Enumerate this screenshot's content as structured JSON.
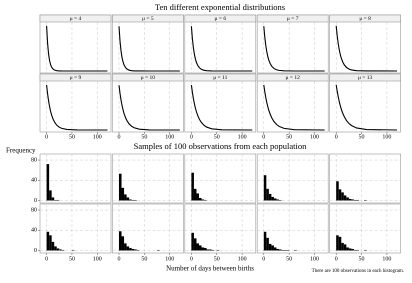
{
  "chart_data": [
    {
      "type": "line",
      "title": "Ten different exponential distributions",
      "color": "#000000",
      "x": [
        0,
        2,
        4,
        6,
        8,
        10,
        13,
        16,
        20,
        25,
        30,
        40,
        60,
        120
      ],
      "xlim": [
        -13,
        127
      ],
      "xticks": [
        0,
        50,
        100
      ],
      "grid": true,
      "panels": [
        {
          "label": "μ = 4",
          "ylim": [
            0,
            0.26
          ],
          "values": [
            0.25,
            0.152,
            0.092,
            0.056,
            0.034,
            0.021,
            0.0097,
            0.0046,
            0.0017,
            0.0005,
            0.0001,
            0,
            0,
            0
          ]
        },
        {
          "label": "μ = 5",
          "ylim": [
            0,
            0.21
          ],
          "values": [
            0.2,
            0.134,
            0.0899,
            0.0602,
            0.0404,
            0.0271,
            0.0149,
            0.0082,
            0.0037,
            0.0013,
            0.0005,
            0.0001,
            0,
            0
          ]
        },
        {
          "label": "μ = 6",
          "ylim": [
            0,
            0.175
          ],
          "values": [
            0.1667,
            0.1194,
            0.0856,
            0.0613,
            0.0439,
            0.0315,
            0.0191,
            0.0116,
            0.0059,
            0.0026,
            0.0011,
            0.0002,
            0,
            0
          ]
        },
        {
          "label": "μ = 7",
          "ylim": [
            0,
            0.15
          ],
          "values": [
            0.1429,
            0.1074,
            0.0807,
            0.0606,
            0.0456,
            0.0342,
            0.0223,
            0.0145,
            0.0082,
            0.004,
            0.002,
            0.0005,
            0,
            0
          ]
        },
        {
          "label": "μ = 8",
          "ylim": [
            0,
            0.13
          ],
          "values": [
            0.125,
            0.0974,
            0.0758,
            0.059,
            0.046,
            0.0358,
            0.0246,
            0.0169,
            0.0103,
            0.0055,
            0.0029,
            0.0008,
            0.0001,
            0
          ]
        },
        {
          "label": "μ = 9",
          "ylim": [
            0,
            0.116
          ],
          "values": [
            0.1111,
            0.089,
            0.0712,
            0.057,
            0.0457,
            0.0366,
            0.0262,
            0.0188,
            0.012,
            0.0069,
            0.004,
            0.0013,
            0.0001,
            0
          ]
        },
        {
          "label": "μ = 10",
          "ylim": [
            0,
            0.105
          ],
          "values": [
            0.1,
            0.0819,
            0.067,
            0.0549,
            0.0449,
            0.0368,
            0.0273,
            0.0202,
            0.0135,
            0.0082,
            0.005,
            0.0018,
            0.0002,
            0
          ]
        },
        {
          "label": "μ = 11",
          "ylim": [
            0,
            0.095
          ],
          "values": [
            0.0909,
            0.0758,
            0.0632,
            0.0527,
            0.0439,
            0.0366,
            0.0279,
            0.0212,
            0.0148,
            0.0094,
            0.0059,
            0.0024,
            0.0004,
            0
          ]
        },
        {
          "label": "μ = 12",
          "ylim": [
            0,
            0.087
          ],
          "values": [
            0.0833,
            0.0705,
            0.0597,
            0.0505,
            0.0428,
            0.0362,
            0.0282,
            0.022,
            0.0157,
            0.0104,
            0.0068,
            0.003,
            0.0006,
            0
          ]
        },
        {
          "label": "μ = 13",
          "ylim": [
            0,
            0.08
          ],
          "values": [
            0.0769,
            0.0659,
            0.0565,
            0.0485,
            0.0416,
            0.0356,
            0.0283,
            0.0225,
            0.0165,
            0.0112,
            0.0077,
            0.0035,
            0.0008,
            0
          ]
        }
      ]
    },
    {
      "type": "histogram",
      "title": "Samples of 100 observations from each population",
      "color": "#000000",
      "ylabel": "Frequency",
      "xlabel": "Number of days between births",
      "note": "There are 100 observations in each histogram.",
      "bins": [
        0,
        5,
        10,
        15,
        20,
        25,
        30,
        35,
        40,
        45,
        50,
        55,
        60,
        65,
        70,
        75,
        80,
        85,
        90,
        95,
        100
      ],
      "xlim": [
        -13,
        127
      ],
      "xticks": [
        0,
        50,
        100
      ],
      "ylim": [
        -5,
        92
      ],
      "yticks": [
        0,
        40,
        80
      ],
      "grid": true,
      "panels": [
        {
          "values": [
            72,
            20,
            6,
            1,
            1,
            0,
            0,
            0,
            0,
            0,
            0,
            0,
            0,
            0,
            0,
            0,
            0,
            0,
            0,
            0
          ]
        },
        {
          "values": [
            53,
            25,
            12,
            6,
            2,
            1,
            1,
            0,
            0,
            0,
            0,
            0,
            0,
            0,
            0,
            0,
            0,
            0,
            0,
            0
          ]
        },
        {
          "values": [
            55,
            23,
            14,
            5,
            2,
            1,
            0,
            0,
            0,
            0,
            0,
            0,
            0,
            0,
            0,
            0,
            0,
            0,
            0,
            0
          ]
        },
        {
          "values": [
            50,
            23,
            13,
            7,
            4,
            2,
            1,
            0,
            0,
            0,
            0,
            0,
            0,
            0,
            0,
            0,
            0,
            0,
            0,
            0
          ]
        },
        {
          "values": [
            38,
            22,
            16,
            10,
            6,
            3,
            2,
            1,
            1,
            0,
            0,
            1,
            0,
            0,
            0,
            0,
            0,
            0,
            0,
            0
          ]
        },
        {
          "values": [
            37,
            30,
            17,
            8,
            4,
            2,
            1,
            0,
            0,
            0,
            1,
            0,
            0,
            0,
            0,
            0,
            0,
            0,
            0,
            0
          ]
        },
        {
          "values": [
            38,
            28,
            14,
            8,
            5,
            3,
            2,
            1,
            0,
            0,
            0,
            0,
            0,
            0,
            0,
            1,
            0,
            0,
            0,
            0
          ]
        },
        {
          "values": [
            35,
            24,
            14,
            10,
            6,
            5,
            2,
            2,
            1,
            0,
            1,
            0,
            0,
            0,
            0,
            0,
            0,
            0,
            0,
            0
          ]
        },
        {
          "values": [
            37,
            25,
            13,
            10,
            6,
            3,
            2,
            1,
            1,
            1,
            0,
            0,
            1,
            0,
            0,
            0,
            0,
            0,
            0,
            0
          ]
        },
        {
          "values": [
            30,
            27,
            15,
            12,
            6,
            4,
            3,
            1,
            1,
            0,
            0,
            1,
            0,
            0,
            0,
            0,
            0,
            0,
            0,
            0
          ]
        }
      ]
    }
  ]
}
